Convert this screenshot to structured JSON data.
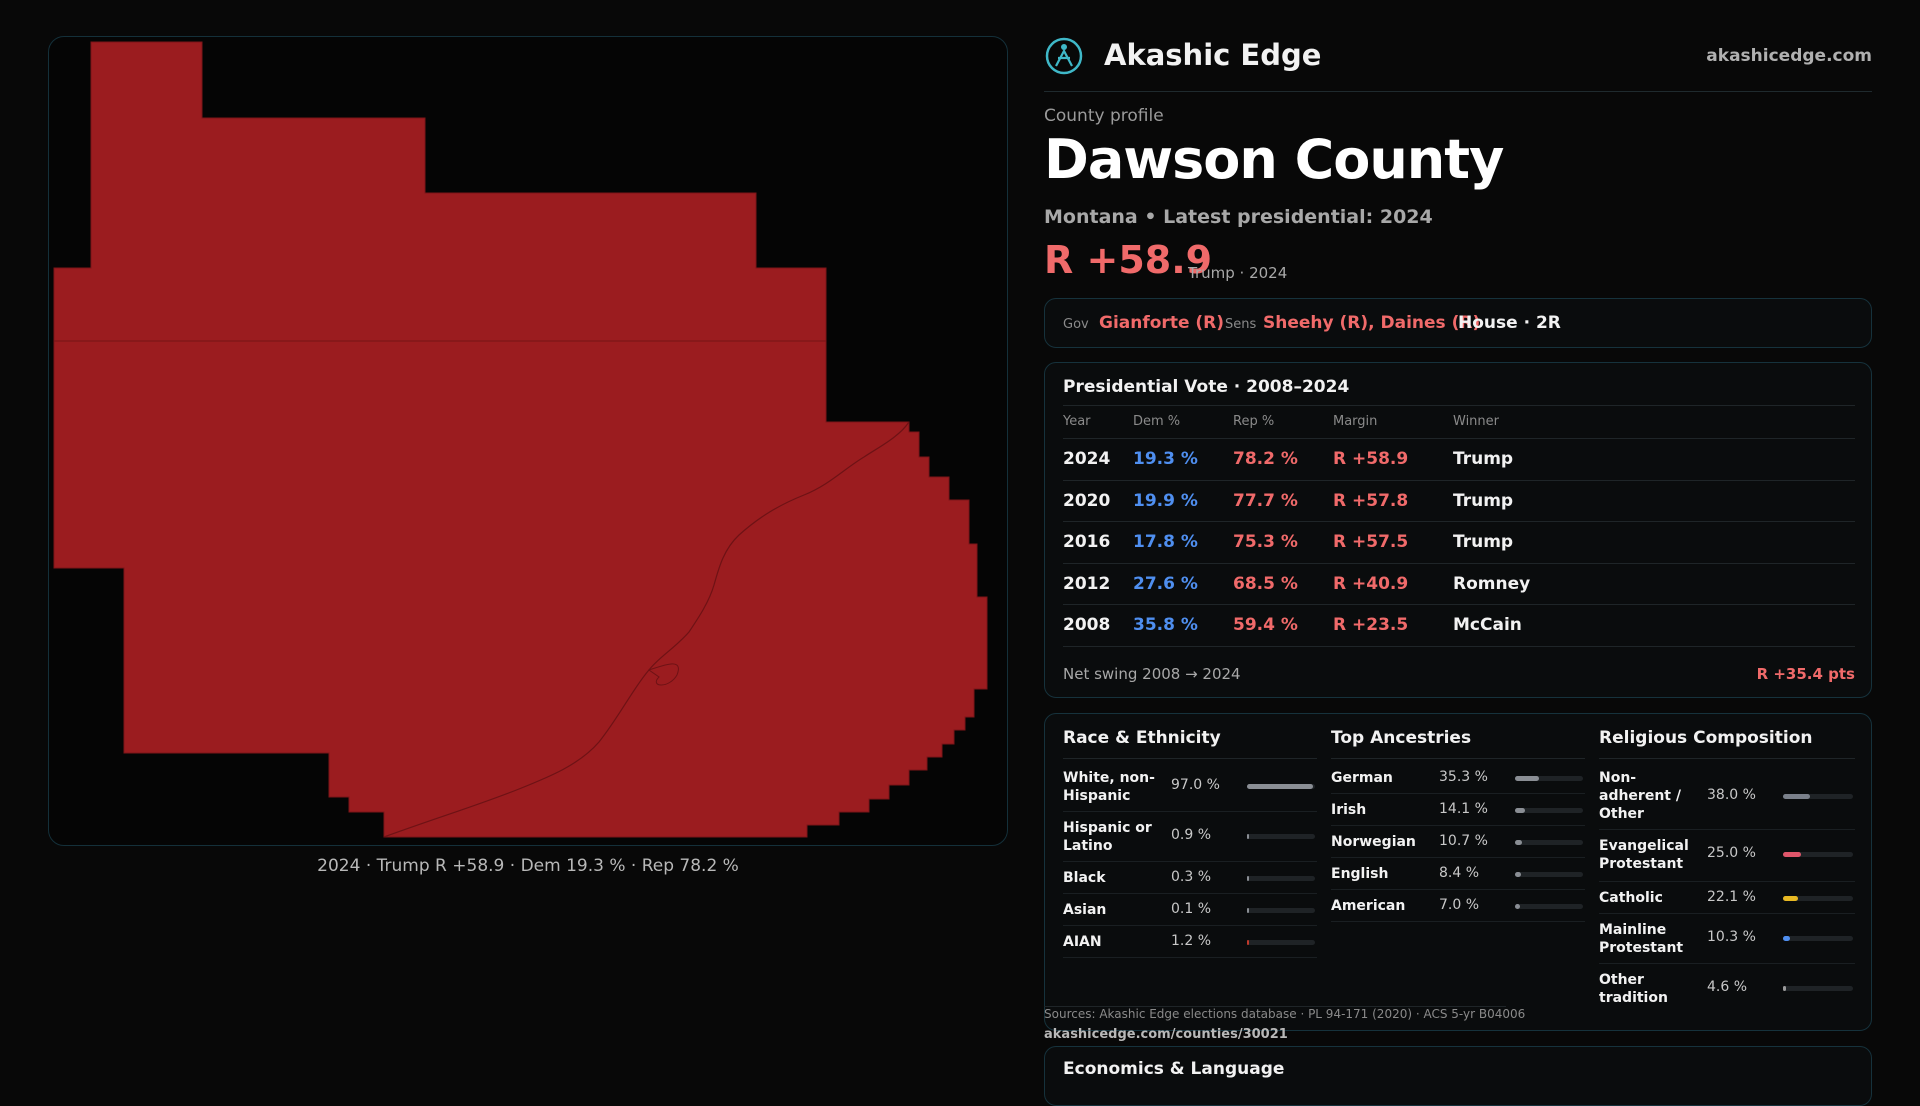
{
  "map": {
    "fill_color": "#9b1c1f",
    "caption": "2024 · Trump R +58.9 · Dem 19.3 % · Rep 78.2 %"
  },
  "header": {
    "brand": "Akashic Edge",
    "site": "akashicedge.com",
    "logo_icon": "globe-figure-icon"
  },
  "profile": {
    "eyebrow": "County profile",
    "county": "Dawson County",
    "subtitle": "Montana • Latest presidential: 2024",
    "margin": "R +58.9",
    "margin_note": "Trump · 2024"
  },
  "officials": {
    "gov_label": "Gov",
    "gov": "Gianforte (R)",
    "sens_label": "Sens",
    "sens": "Sheehy (R), Daines (R)",
    "house": "House · 2R"
  },
  "presidential": {
    "title": "Presidential Vote · 2008–2024",
    "headers": [
      "Year",
      "Dem %",
      "Rep %",
      "Margin",
      "Winner"
    ],
    "rows": [
      {
        "year": "2024",
        "dem": "19.3 %",
        "rep": "78.2 %",
        "margin": "R +58.9",
        "winner": "Trump"
      },
      {
        "year": "2020",
        "dem": "19.9 %",
        "rep": "77.7 %",
        "margin": "R +57.8",
        "winner": "Trump"
      },
      {
        "year": "2016",
        "dem": "17.8 %",
        "rep": "75.3 %",
        "margin": "R +57.5",
        "winner": "Trump"
      },
      {
        "year": "2012",
        "dem": "27.6 %",
        "rep": "68.5 %",
        "margin": "R +40.9",
        "winner": "Romney"
      },
      {
        "year": "2008",
        "dem": "35.8 %",
        "rep": "59.4 %",
        "margin": "R +23.5",
        "winner": "McCain"
      }
    ],
    "swing_label": "Net swing 2008 → 2024",
    "swing_value": "R +35.4 pts"
  },
  "race": {
    "title": "Race & Ethnicity",
    "items": [
      {
        "label": "White, non-Hispanic",
        "value": "97.0 %",
        "pct": 97.0
      },
      {
        "label": "Hispanic or Latino",
        "value": "0.9 %",
        "pct": 0.9
      },
      {
        "label": "Black",
        "value": "0.3 %",
        "pct": 0.3
      },
      {
        "label": "Asian",
        "value": "0.1 %",
        "pct": 0.1
      },
      {
        "label": "AIAN",
        "value": "1.2 %",
        "pct": 1.2
      }
    ]
  },
  "ancestry": {
    "title": "Top Ancestries",
    "items": [
      {
        "label": "German",
        "value": "35.3 %",
        "pct": 35.3
      },
      {
        "label": "Irish",
        "value": "14.1 %",
        "pct": 14.1
      },
      {
        "label": "Norwegian",
        "value": "10.7 %",
        "pct": 10.7
      },
      {
        "label": "English",
        "value": "8.4 %",
        "pct": 8.4
      },
      {
        "label": "American",
        "value": "7.0 %",
        "pct": 7.0
      }
    ]
  },
  "religion": {
    "title": "Religious Composition",
    "items": [
      {
        "label": "Non-adherent / Other",
        "value": "38.0 %",
        "pct": 38.0,
        "color": "#7a808a"
      },
      {
        "label": "Evangelical Protestant",
        "value": "25.0 %",
        "pct": 25.0,
        "color": "#e0566a"
      },
      {
        "label": "Catholic",
        "value": "22.1 %",
        "pct": 22.1,
        "color": "#e8b923"
      },
      {
        "label": "Mainline Protestant",
        "value": "10.3 %",
        "pct": 10.3,
        "color": "#4f8ff0"
      },
      {
        "label": "Other tradition",
        "value": "4.6 %",
        "pct": 4.6,
        "color": "#9a9a9a"
      }
    ]
  },
  "sources": {
    "line1": "Sources: Akashic Edge elections database · PL 94-171 (2020) · ACS 5-yr B04006",
    "line2": "akashicedge.com/counties/30021"
  },
  "econ": {
    "title": "Economics & Language"
  },
  "colors": {
    "dem": "#4f8ff0",
    "rep": "#f06a6a",
    "bar_neutral": "#8a8e94",
    "bar_race_aian": "#c0392b"
  }
}
